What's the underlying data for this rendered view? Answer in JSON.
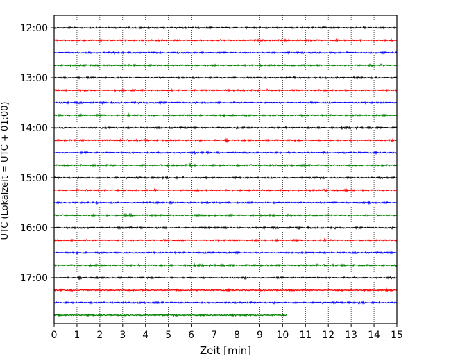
{
  "chart_data": {
    "type": "line",
    "title": "",
    "xlabel": "Zeit  [min]",
    "ylabel": "UTC (Lokalzeit = UTC + 01:00)",
    "xlim": [
      0,
      15
    ],
    "x_ticks": [
      "0",
      "1",
      "2",
      "3",
      "4",
      "5",
      "6",
      "7",
      "8",
      "9",
      "10",
      "11",
      "12",
      "13",
      "14",
      "15"
    ],
    "y_tick_labels": [
      "12:00",
      "13:00",
      "14:00",
      "15:00",
      "16:00",
      "17:00"
    ],
    "grid": "vertical dotted lines at each minute",
    "trace_interval_min": 15,
    "traces": [
      {
        "start": "12:00",
        "color": "#000000",
        "end_min": 15
      },
      {
        "start": "12:15",
        "color": "#ff0000",
        "end_min": 15
      },
      {
        "start": "12:30",
        "color": "#0000ff",
        "end_min": 15
      },
      {
        "start": "12:45",
        "color": "#008000",
        "end_min": 15
      },
      {
        "start": "13:00",
        "color": "#000000",
        "end_min": 15
      },
      {
        "start": "13:15",
        "color": "#ff0000",
        "end_min": 15
      },
      {
        "start": "13:30",
        "color": "#0000ff",
        "end_min": 15
      },
      {
        "start": "13:45",
        "color": "#008000",
        "end_min": 15
      },
      {
        "start": "14:00",
        "color": "#000000",
        "end_min": 15
      },
      {
        "start": "14:15",
        "color": "#ff0000",
        "end_min": 15
      },
      {
        "start": "14:30",
        "color": "#0000ff",
        "end_min": 15
      },
      {
        "start": "14:45",
        "color": "#008000",
        "end_min": 15
      },
      {
        "start": "15:00",
        "color": "#000000",
        "end_min": 15
      },
      {
        "start": "15:15",
        "color": "#ff0000",
        "end_min": 15
      },
      {
        "start": "15:30",
        "color": "#0000ff",
        "end_min": 15
      },
      {
        "start": "15:45",
        "color": "#008000",
        "end_min": 15
      },
      {
        "start": "16:00",
        "color": "#000000",
        "end_min": 15
      },
      {
        "start": "16:15",
        "color": "#ff0000",
        "end_min": 15
      },
      {
        "start": "16:30",
        "color": "#0000ff",
        "end_min": 15
      },
      {
        "start": "16:45",
        "color": "#008000",
        "end_min": 15
      },
      {
        "start": "17:00",
        "color": "#000000",
        "end_min": 15
      },
      {
        "start": "17:15",
        "color": "#ff0000",
        "end_min": 15
      },
      {
        "start": "17:30",
        "color": "#0000ff",
        "end_min": 15
      },
      {
        "start": "17:45",
        "color": "#008000",
        "end_min": 10.2
      }
    ]
  }
}
